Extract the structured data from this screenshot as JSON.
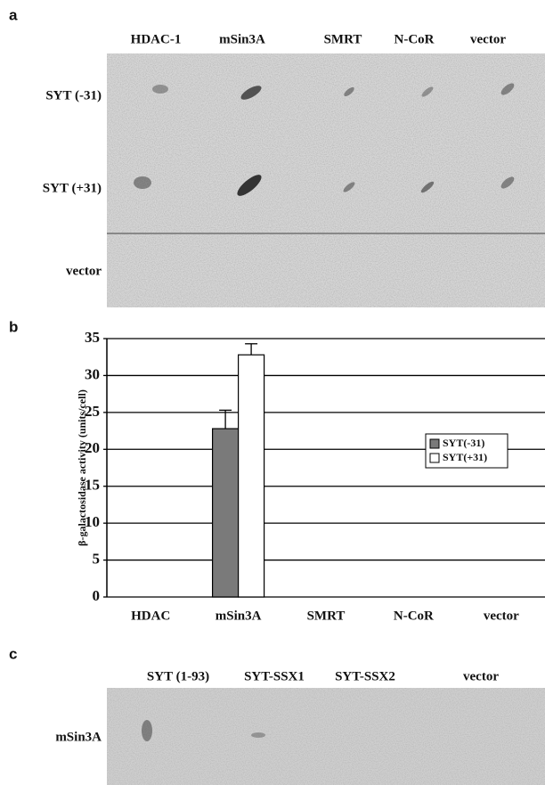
{
  "panel_a": {
    "label": "a",
    "columns": [
      "HDAC-1",
      "mSin3A",
      "SMRT",
      "N-CoR",
      "vector"
    ],
    "rows": [
      "SYT (-31)",
      "SYT (+31)",
      "vector"
    ]
  },
  "chart_data": {
    "type": "bar",
    "panel_label": "b",
    "y_label": "β-galactosidase activity (units/cell)",
    "categories": [
      "HDAC",
      "mSin3A",
      "SMRT",
      "N-CoR",
      "vector"
    ],
    "series": [
      {
        "name": "SYT(-31)",
        "color": "#7a7a7a",
        "values": [
          0,
          22.8,
          0,
          0,
          0
        ],
        "errors": [
          null,
          2.5,
          null,
          null,
          null
        ]
      },
      {
        "name": "SYT(+31)",
        "color": "#ffffff",
        "values": [
          0,
          32.8,
          0,
          0,
          0
        ],
        "errors": [
          null,
          1.5,
          null,
          null,
          null
        ]
      }
    ],
    "ylim": [
      0,
      35
    ],
    "yticks": [
      0,
      5,
      10,
      15,
      20,
      25,
      30,
      35
    ],
    "grid": true,
    "legend": "right"
  },
  "panel_c": {
    "label": "c",
    "columns": [
      "SYT (1-93)",
      "SYT-SSX1",
      "SYT-SSX2",
      "vector"
    ],
    "rows": [
      "mSin3A"
    ]
  }
}
